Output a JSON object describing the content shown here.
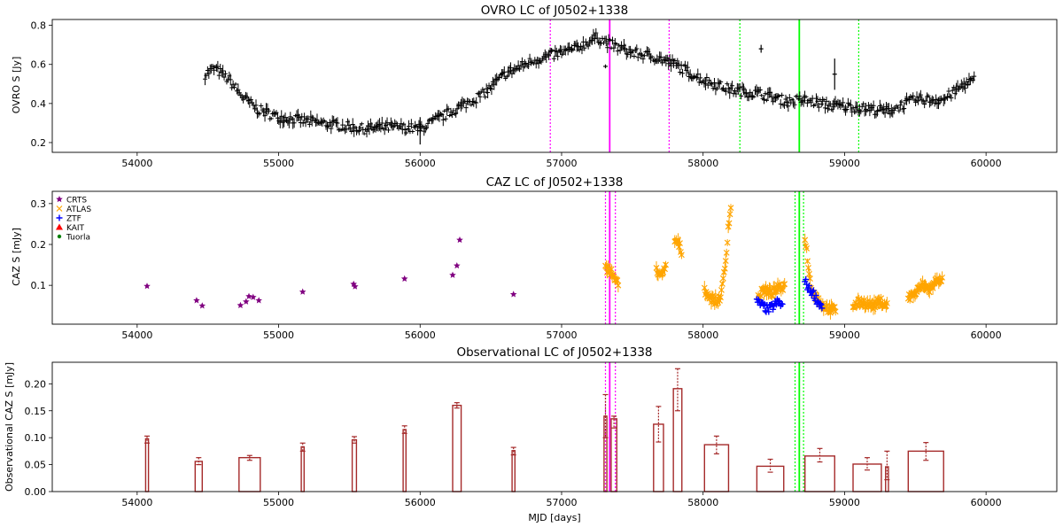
{
  "figure": {
    "panels": [
      {
        "title": "OVRO LC of J0502+1338",
        "ylabel": "OVRO S [Jy]",
        "xlabel": "",
        "xlim": [
          53400,
          60500
        ],
        "ylim": [
          0.15,
          0.83
        ],
        "xticks": [
          54000,
          55000,
          56000,
          57000,
          58000,
          59000,
          60000
        ],
        "yticks": [
          0.2,
          0.4,
          0.6,
          0.8
        ],
        "ytick_labels": [
          "0.2",
          "0.4",
          "0.6",
          "0.8"
        ]
      },
      {
        "title": "CAZ LC of J0502+1338",
        "ylabel": "CAZ S [mJy]",
        "xlabel": "",
        "xlim": [
          53400,
          60500
        ],
        "ylim": [
          0.005,
          0.33
        ],
        "xticks": [
          54000,
          55000,
          56000,
          57000,
          58000,
          59000,
          60000
        ],
        "yticks": [
          0.1,
          0.2,
          0.3
        ],
        "ytick_labels": [
          "0.1",
          "0.2",
          "0.3"
        ]
      },
      {
        "title": "Observational LC of J0502+1338",
        "ylabel": "Observational CAZ S [mJy]",
        "xlabel": "MJD [days]",
        "xlim": [
          53400,
          60500
        ],
        "ylim": [
          0,
          0.24
        ],
        "xticks": [
          54000,
          55000,
          56000,
          57000,
          58000,
          59000,
          60000
        ],
        "yticks": [
          0,
          0.05,
          0.1,
          0.15,
          0.2
        ],
        "ytick_labels": [
          "0.00",
          "0.05",
          "0.10",
          "0.15",
          "0.20"
        ]
      }
    ],
    "legend": {
      "placement": "upper-left",
      "entries": [
        {
          "label": "CRTS",
          "marker": "star",
          "color": "#800080"
        },
        {
          "label": "ATLAS",
          "marker": "x",
          "color": "#FFA500"
        },
        {
          "label": "ZTF",
          "marker": "plus",
          "color": "#0000FF"
        },
        {
          "label": "KAIT",
          "marker": "triangle",
          "color": "#FF0000"
        },
        {
          "label": "Tuorla",
          "marker": "dot",
          "color": "#008000"
        }
      ]
    }
  },
  "chart_data": [
    {
      "type": "scatter",
      "title": "OVRO LC of J0502+1338",
      "ylabel": "OVRO S [Jy]",
      "xlim": [
        53400,
        60500
      ],
      "ylim": [
        0.15,
        0.83
      ],
      "grid": false,
      "marker_color": "#000000",
      "trend": [
        [
          54480,
          0.55
        ],
        [
          54550,
          0.58
        ],
        [
          54650,
          0.52
        ],
        [
          54750,
          0.43
        ],
        [
          54850,
          0.37
        ],
        [
          55000,
          0.33
        ],
        [
          55200,
          0.31
        ],
        [
          55400,
          0.29
        ],
        [
          55600,
          0.27
        ],
        [
          55800,
          0.28
        ],
        [
          56000,
          0.27
        ],
        [
          56150,
          0.33
        ],
        [
          56300,
          0.39
        ],
        [
          56450,
          0.45
        ],
        [
          56600,
          0.55
        ],
        [
          56800,
          0.62
        ],
        [
          57000,
          0.66
        ],
        [
          57100,
          0.68
        ],
        [
          57250,
          0.74
        ],
        [
          57350,
          0.7
        ],
        [
          57500,
          0.66
        ],
        [
          57650,
          0.64
        ],
        [
          57800,
          0.6
        ],
        [
          58000,
          0.52
        ],
        [
          58200,
          0.47
        ],
        [
          58400,
          0.45
        ],
        [
          58600,
          0.41
        ],
        [
          58700,
          0.42
        ],
        [
          58900,
          0.39
        ],
        [
          59100,
          0.38
        ],
        [
          59300,
          0.36
        ],
        [
          59500,
          0.42
        ],
        [
          59700,
          0.42
        ],
        [
          59850,
          0.5
        ],
        [
          59920,
          0.52
        ]
      ],
      "outliers": [
        {
          "x": 58410,
          "y": 0.68,
          "err": 0.02
        },
        {
          "x": 58930,
          "y": 0.55,
          "err": 0.08
        },
        {
          "x": 57310,
          "y": 0.59,
          "err": 0.01
        },
        {
          "x": 56000,
          "y": 0.26,
          "err": 0.07
        }
      ],
      "vlines": [
        {
          "x": 57340,
          "style": "solid",
          "color": "#FF00FF"
        },
        {
          "x": 56920,
          "style": "dotted",
          "color": "#FF00FF"
        },
        {
          "x": 57760,
          "style": "dotted",
          "color": "#FF00FF"
        },
        {
          "x": 58680,
          "style": "solid",
          "color": "#00FF00"
        },
        {
          "x": 58260,
          "style": "dotted",
          "color": "#00FF00"
        },
        {
          "x": 59100,
          "style": "dotted",
          "color": "#00FF00"
        }
      ]
    },
    {
      "type": "scatter",
      "title": "CAZ LC of J0502+1338",
      "ylabel": "CAZ S [mJy]",
      "xlim": [
        53400,
        60500
      ],
      "ylim": [
        0.005,
        0.33
      ],
      "grid": false,
      "series": [
        {
          "name": "CRTS",
          "marker": "star",
          "color": "#800080",
          "points": [
            [
              54070,
              0.098
            ],
            [
              54420,
              0.063
            ],
            [
              54460,
              0.05
            ],
            [
              54730,
              0.051
            ],
            [
              54770,
              0.06
            ],
            [
              54790,
              0.073
            ],
            [
              54820,
              0.071
            ],
            [
              54860,
              0.063
            ],
            [
              55170,
              0.084
            ],
            [
              55530,
              0.103
            ],
            [
              55540,
              0.097
            ],
            [
              55890,
              0.116
            ],
            [
              56230,
              0.125
            ],
            [
              56260,
              0.148
            ],
            [
              56280,
              0.211
            ],
            [
              56660,
              0.078
            ]
          ]
        },
        {
          "name": "ATLAS",
          "marker": "x",
          "color": "#FFA500",
          "segments": [
            [
              [
                57310,
                0.14
              ],
              [
                57340,
                0.14
              ],
              [
                57370,
                0.12
              ],
              [
                57400,
                0.1
              ]
            ],
            [
              [
                57670,
                0.14
              ],
              [
                57710,
                0.12
              ],
              [
                57740,
                0.15
              ]
            ],
            [
              [
                57800,
                0.21
              ],
              [
                57830,
                0.2
              ],
              [
                57850,
                0.18
              ]
            ],
            [
              [
                58010,
                0.09
              ],
              [
                58050,
                0.07
              ],
              [
                58100,
                0.06
              ],
              [
                58130,
                0.08
              ],
              [
                58160,
                0.16
              ],
              [
                58180,
                0.25
              ],
              [
                58200,
                0.3
              ]
            ],
            [
              [
                58390,
                0.07
              ],
              [
                58430,
                0.09
              ],
              [
                58480,
                0.08
              ],
              [
                58520,
                0.09
              ],
              [
                58580,
                0.1
              ]
            ],
            [
              [
                58720,
                0.22
              ],
              [
                58760,
                0.1
              ],
              [
                58800,
                0.07
              ],
              [
                58850,
                0.05
              ],
              [
                58900,
                0.04
              ],
              [
                58940,
                0.04
              ]
            ],
            [
              [
                59060,
                0.05
              ],
              [
                59120,
                0.06
              ],
              [
                59200,
                0.05
              ],
              [
                59260,
                0.06
              ],
              [
                59300,
                0.05
              ]
            ],
            [
              [
                59450,
                0.07
              ],
              [
                59500,
                0.08
              ],
              [
                59550,
                0.1
              ],
              [
                59600,
                0.09
              ],
              [
                59650,
                0.11
              ],
              [
                59690,
                0.12
              ]
            ]
          ]
        },
        {
          "name": "ZTF",
          "marker": "plus",
          "color": "#0000FF",
          "segments": [
            [
              [
                58380,
                0.06
              ],
              [
                58420,
                0.05
              ],
              [
                58460,
                0.04
              ],
              [
                58500,
                0.05
              ],
              [
                58530,
                0.06
              ],
              [
                58560,
                0.05
              ]
            ],
            [
              [
                58720,
                0.11
              ],
              [
                58750,
                0.09
              ],
              [
                58780,
                0.08
              ],
              [
                58810,
                0.06
              ],
              [
                58840,
                0.05
              ]
            ]
          ]
        },
        {
          "name": "KAIT",
          "marker": "triangle",
          "color": "#FF0000",
          "points": []
        },
        {
          "name": "Tuorla",
          "marker": "dot",
          "color": "#008000",
          "points": []
        }
      ],
      "vlines": [
        {
          "x": 57340,
          "style": "solid",
          "color": "#FF00FF"
        },
        {
          "x": 57310,
          "style": "dotted",
          "color": "#FF00FF"
        },
        {
          "x": 57380,
          "style": "dotted",
          "color": "#FF00FF"
        },
        {
          "x": 58680,
          "style": "solid",
          "color": "#00FF00"
        },
        {
          "x": 58650,
          "style": "dotted",
          "color": "#00FF00"
        },
        {
          "x": 58710,
          "style": "dotted",
          "color": "#00FF00"
        }
      ]
    },
    {
      "type": "bar",
      "title": "Observational LC of J0502+1338",
      "ylabel": "Observational CAZ S [mJy]",
      "xlabel": "MJD [days]",
      "xlim": [
        53400,
        60500
      ],
      "ylim": [
        0,
        0.24
      ],
      "grid": false,
      "bar_color": "#A52A2A",
      "bars": [
        {
          "start": 54060,
          "end": 54080,
          "value": 0.098,
          "lo": 0.09,
          "hi": 0.103
        },
        {
          "start": 54410,
          "end": 54460,
          "value": 0.056,
          "lo": 0.05,
          "hi": 0.063
        },
        {
          "start": 54720,
          "end": 54870,
          "value": 0.063,
          "lo": 0.058,
          "hi": 0.067
        },
        {
          "start": 55160,
          "end": 55180,
          "value": 0.083,
          "lo": 0.075,
          "hi": 0.09
        },
        {
          "start": 55520,
          "end": 55550,
          "value": 0.096,
          "lo": 0.09,
          "hi": 0.102
        },
        {
          "start": 55880,
          "end": 55900,
          "value": 0.115,
          "lo": 0.108,
          "hi": 0.122
        },
        {
          "start": 56230,
          "end": 56290,
          "value": 0.16,
          "lo": 0.155,
          "hi": 0.165
        },
        {
          "start": 56650,
          "end": 56670,
          "value": 0.076,
          "lo": 0.068,
          "hi": 0.082
        },
        {
          "start": 57300,
          "end": 57320,
          "value": 0.14,
          "lo": 0.1,
          "hi": 0.18
        },
        {
          "start": 57350,
          "end": 57390,
          "value": 0.135,
          "lo": 0.118,
          "hi": 0.14
        },
        {
          "start": 57650,
          "end": 57720,
          "value": 0.125,
          "lo": 0.092,
          "hi": 0.158
        },
        {
          "start": 57790,
          "end": 57850,
          "value": 0.191,
          "lo": 0.15,
          "hi": 0.228
        },
        {
          "start": 58010,
          "end": 58180,
          "value": 0.087,
          "lo": 0.07,
          "hi": 0.103
        },
        {
          "start": 58380,
          "end": 58570,
          "value": 0.047,
          "lo": 0.036,
          "hi": 0.06
        },
        {
          "start": 58720,
          "end": 58930,
          "value": 0.066,
          "lo": 0.055,
          "hi": 0.08
        },
        {
          "start": 59060,
          "end": 59260,
          "value": 0.051,
          "lo": 0.04,
          "hi": 0.063
        },
        {
          "start": 59290,
          "end": 59310,
          "value": 0.046,
          "lo": 0.022,
          "hi": 0.075
        },
        {
          "start": 59450,
          "end": 59700,
          "value": 0.075,
          "lo": 0.058,
          "hi": 0.091
        }
      ],
      "vlines": [
        {
          "x": 57340,
          "style": "solid",
          "color": "#FF00FF"
        },
        {
          "x": 57310,
          "style": "dotted",
          "color": "#FF00FF"
        },
        {
          "x": 57380,
          "style": "dotted",
          "color": "#FF00FF"
        },
        {
          "x": 58680,
          "style": "solid",
          "color": "#00FF00"
        },
        {
          "x": 58650,
          "style": "dotted",
          "color": "#00FF00"
        },
        {
          "x": 58710,
          "style": "dotted",
          "color": "#00FF00"
        }
      ]
    }
  ]
}
